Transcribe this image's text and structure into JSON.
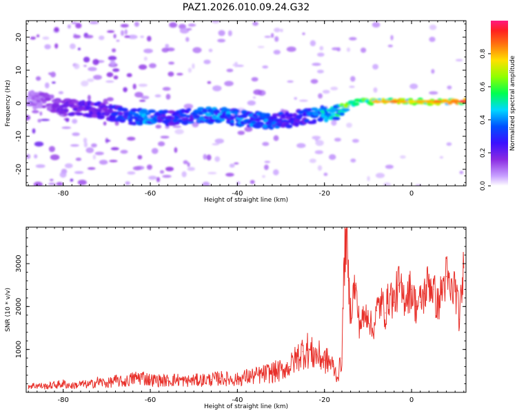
{
  "figure_title": "PAZ1.2026.010.09.24.G32",
  "chart_data": [
    {
      "type": "heatmap",
      "title": "PAZ1.2026.010.09.24.G32",
      "xlabel": "Height of straight line (km)",
      "ylabel": "Frequency (Hz)",
      "xlim": [
        -88.5,
        12.5
      ],
      "ylim": [
        -25,
        25
      ],
      "xticks": [
        -80,
        -60,
        -40,
        -20,
        0
      ],
      "yticks": [
        -20,
        -10,
        0,
        10,
        20
      ],
      "xtick_labels": [
        "-80",
        "-60",
        "-40",
        "-20",
        "0"
      ],
      "ytick_labels": [
        "-20",
        "-10",
        "0",
        "10",
        "20"
      ],
      "colorbar": {
        "label": "Normalized spectral amplitude",
        "range": [
          0,
          1
        ],
        "ticks": [
          0.0,
          0.2,
          0.4,
          0.6,
          0.8
        ],
        "tick_labels": [
          "0.0",
          "0.2",
          "0.4",
          "0.6",
          "0.8"
        ],
        "colormap": [
          "#ffffff",
          "#b070ff",
          "#6600ff",
          "#1010ff",
          "#00d8ff",
          "#00ff40",
          "#c8ff00",
          "#ffd000",
          "#ff3010",
          "#ff2070"
        ]
      },
      "trace": {
        "description": "Dominant Doppler ridge of the signal versus height",
        "x": [
          -88,
          -84,
          -80,
          -76,
          -72,
          -68,
          -64,
          -60,
          -56,
          -52,
          -48,
          -44,
          -40,
          -36,
          -32,
          -28,
          -24,
          -20,
          -18,
          -16,
          -14,
          -12,
          -10,
          -8,
          -6,
          -4,
          -2,
          0,
          2,
          4,
          6,
          8,
          10,
          12
        ],
        "y": [
          1.5,
          0.5,
          -1.0,
          -1.5,
          -2.0,
          -3.0,
          -4.0,
          -4.5,
          -4.5,
          -4.0,
          -3.5,
          -3.5,
          -4.5,
          -5.0,
          -5.5,
          -5.0,
          -4.0,
          -3.0,
          -3.0,
          -1.5,
          0.0,
          0.5,
          0.5,
          0.5,
          0.5,
          0.5,
          0.5,
          0.5,
          0.5,
          0.5,
          0.5,
          0.5,
          0.5,
          0.5
        ],
        "amplitude": [
          0.1,
          0.15,
          0.2,
          0.25,
          0.25,
          0.3,
          0.4,
          0.45,
          0.3,
          0.35,
          0.4,
          0.45,
          0.4,
          0.45,
          0.4,
          0.3,
          0.35,
          0.5,
          0.5,
          0.6,
          0.7,
          0.7,
          0.6,
          0.8,
          0.8,
          0.85,
          0.8,
          0.75,
          0.8,
          0.8,
          0.85,
          0.8,
          0.85,
          0.95
        ]
      }
    },
    {
      "type": "line",
      "title": "",
      "xlabel": "Height of straight line (km)",
      "ylabel": "SNR (10 * v/v)",
      "xlim": [
        -88.5,
        12.5
      ],
      "ylim": [
        0,
        3850
      ],
      "xticks": [
        -80,
        -60,
        -40,
        -20,
        0
      ],
      "yticks": [
        1000,
        2000,
        3000
      ],
      "xtick_labels": [
        "-80",
        "-60",
        "-40",
        "-20",
        "0"
      ],
      "ytick_labels": [
        "1000",
        "2000",
        "3000"
      ],
      "series": [
        {
          "name": "SNR",
          "color": "#e8302a",
          "x": [
            -88,
            -86,
            -84,
            -82,
            -80,
            -78,
            -76,
            -74,
            -72,
            -70,
            -68,
            -66,
            -64,
            -62,
            -60,
            -58,
            -56,
            -54,
            -52,
            -50,
            -48,
            -46,
            -44,
            -42,
            -40,
            -38,
            -36,
            -34,
            -32,
            -30,
            -28,
            -26,
            -25,
            -24,
            -23,
            -22,
            -21,
            -20,
            -19,
            -18,
            -17,
            -16,
            -15.5,
            -15,
            -14.5,
            -14,
            -13,
            -12,
            -11,
            -10,
            -9,
            -8,
            -7,
            -6,
            -5,
            -4,
            -3,
            -2,
            -1,
            0,
            1,
            2,
            3,
            4,
            5,
            6,
            7,
            8,
            9,
            10,
            11,
            12
          ],
          "values": [
            150,
            160,
            140,
            170,
            200,
            150,
            190,
            180,
            250,
            210,
            270,
            240,
            320,
            360,
            290,
            280,
            270,
            300,
            260,
            280,
            290,
            300,
            330,
            310,
            300,
            360,
            380,
            420,
            470,
            500,
            600,
            850,
            950,
            1000,
            900,
            880,
            820,
            750,
            720,
            600,
            350,
            800,
            3000,
            3700,
            2600,
            1900,
            2500,
            1600,
            1700,
            1900,
            1400,
            1900,
            2100,
            1850,
            2300,
            2100,
            2500,
            2200,
            2300,
            2400,
            2000,
            2100,
            2300,
            2600,
            2400,
            2000,
            2400,
            2700,
            2300,
            2500,
            1700,
            2900
          ]
        }
      ]
    }
  ]
}
